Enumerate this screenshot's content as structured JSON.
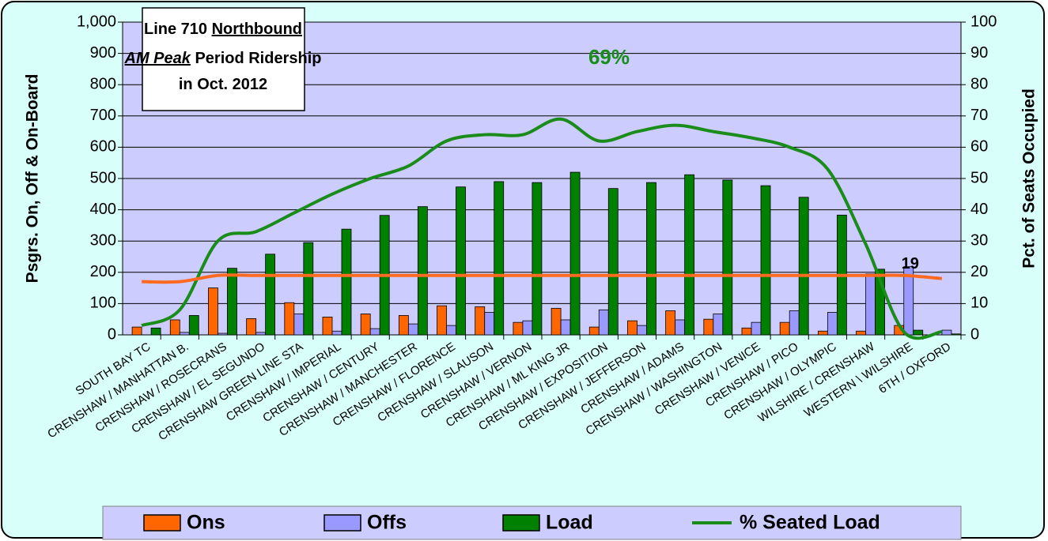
{
  "chart_data": {
    "type": "bar",
    "title": [
      [
        {
          "text": "Line 710 "
        },
        {
          "text": "Northbound",
          "underline": true
        }
      ],
      [
        {
          "text": "AM Peak",
          "underline": true,
          "italic": true
        },
        {
          "text": " Period Ridership"
        }
      ],
      [
        {
          "text": "in Oct. 2012"
        }
      ]
    ],
    "annotation": "69%",
    "annotation_color": "#1a8c1a",
    "ylabel": "Psgrs. On, Off & On-Board",
    "y2label": "Pct. of Seats Occupied",
    "categories": [
      "SOUTH BAY TC",
      "CRENSHAW / MANHATTAN B.",
      "CRENSHAW / ROSECRANS",
      "CRENSHAW / EL SEGUNDO",
      "CRENSHAW GREEN LINE STA",
      "CRENSHAW / IMPERIAL",
      "CRENSHAW / CENTURY",
      "CRENSHAW / MANCHESTER",
      "CRENSHAW / FLORENCE",
      "CRENSHAW / SLAUSON",
      "CRENSHAW / VERNON",
      "CRENSHAW / ML KING JR",
      "CRENSHAW / EXPOSITION",
      "CRENSHAW / JEFFERSON",
      "CRENSHAW / ADAMS",
      "CRENSHAW / WASHINGTON",
      "CRENSHAW / VENICE",
      "CRENSHAW / PICO",
      "CRENSHAW / OLYMPIC",
      "WILSHIRE / CRENSHAW",
      "WESTERN \\ WILSHIRE",
      "6TH / OXFORD"
    ],
    "series": [
      {
        "name": "Ons",
        "kind": "bar",
        "color": "#ff6600",
        "values": [
          25,
          48,
          150,
          52,
          103,
          57,
          67,
          62,
          93,
          90,
          40,
          85,
          25,
          45,
          77,
          50,
          22,
          40,
          12,
          12,
          30,
          0
        ]
      },
      {
        "name": "Offs",
        "kind": "bar",
        "color": "#9999ff",
        "values": [
          0,
          8,
          5,
          8,
          67,
          12,
          20,
          35,
          30,
          72,
          45,
          48,
          80,
          30,
          48,
          67,
          40,
          77,
          72,
          195,
          218,
          15
        ]
      },
      {
        "name": "Load",
        "kind": "bar",
        "color": "#008000",
        "values": [
          22,
          62,
          213,
          258,
          295,
          338,
          382,
          410,
          473,
          490,
          487,
          520,
          468,
          487,
          512,
          495,
          477,
          440,
          383,
          210,
          15,
          3
        ]
      },
      {
        "name": "% Seated Load",
        "kind": "line",
        "axis": "y2",
        "color": "#1a8c1a",
        "values": [
          3,
          8,
          30,
          33,
          39,
          45,
          50,
          54,
          62,
          64,
          64,
          69,
          62,
          65,
          67,
          65,
          63,
          60,
          53,
          29,
          1,
          1
        ]
      },
      {
        "kind": "line",
        "axis": "y2",
        "color": "#ff6a20",
        "values": [
          17,
          17,
          19,
          19,
          19,
          19,
          19,
          19,
          19,
          19,
          19,
          19,
          19,
          19,
          19,
          19,
          19,
          19,
          19,
          19,
          19,
          18
        ],
        "value_labels": [
          null,
          null,
          null,
          null,
          null,
          null,
          null,
          null,
          null,
          null,
          null,
          null,
          null,
          null,
          null,
          null,
          null,
          null,
          null,
          null,
          "19",
          null
        ]
      }
    ],
    "ylim": [
      0,
      1000
    ],
    "yticks": [
      0,
      100,
      200,
      300,
      400,
      500,
      600,
      700,
      800,
      900,
      {
        "value": 1000,
        "label": "1,000"
      }
    ],
    "y2lim": [
      0,
      100
    ],
    "y2ticks": [
      0,
      10,
      20,
      30,
      40,
      50,
      60,
      70,
      80,
      90,
      100
    ],
    "grid": true
  }
}
